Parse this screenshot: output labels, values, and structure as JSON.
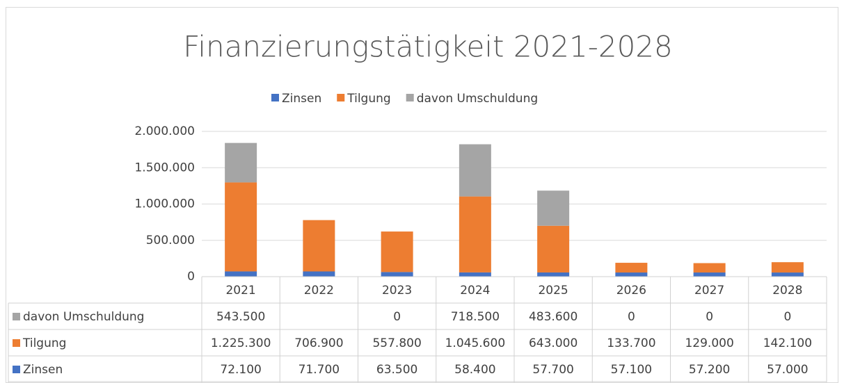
{
  "chart_data": {
    "type": "bar",
    "stacked": true,
    "title": "Finanzierungstätigkeit 2021-2028",
    "categories": [
      "2021",
      "2022",
      "2023",
      "2024",
      "2025",
      "2026",
      "2027",
      "2028"
    ],
    "series": [
      {
        "name": "Zinsen",
        "color": "#4472c4",
        "values": [
          72100,
          71700,
          63500,
          58400,
          57700,
          57100,
          57200,
          57000
        ],
        "value_labels": [
          "72.100",
          "71.700",
          "63.500",
          "58.400",
          "57.700",
          "57.100",
          "57.200",
          "57.000"
        ]
      },
      {
        "name": "Tilgung",
        "color": "#ed7d31",
        "values": [
          1225300,
          706900,
          557800,
          1045600,
          643000,
          133700,
          129000,
          142100
        ],
        "value_labels": [
          "1.225.300",
          "706.900",
          "557.800",
          "1.045.600",
          "643.000",
          "133.700",
          "129.000",
          "142.100"
        ]
      },
      {
        "name": "davon Umschuldung",
        "color": "#a5a5a5",
        "values": [
          543500,
          null,
          0,
          718500,
          483600,
          0,
          0,
          0
        ],
        "value_labels": [
          "543.500",
          null,
          "0",
          "718.500",
          "483.600",
          "0",
          "0",
          "0"
        ]
      }
    ],
    "ylim": [
      0,
      2000000
    ],
    "yticks": [
      0,
      {
        "value": 500000,
        "label": "500.000"
      },
      {
        "value": 1000000,
        "label": "1.000.000"
      },
      {
        "value": 1500000,
        "label": "1.500.000"
      },
      {
        "value": 2000000,
        "label": "2.000.000"
      }
    ],
    "grid": true,
    "legend": "top",
    "data_table": true
  }
}
